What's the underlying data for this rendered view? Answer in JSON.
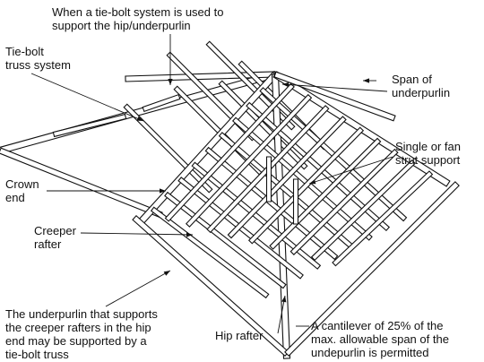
{
  "diagram": {
    "labels": {
      "top_note": [
        "When a tie-bolt system is used to",
        "support the hip/underpurlin"
      ],
      "tie_bolt_truss": [
        "Tie-bolt",
        "truss system"
      ],
      "span_of_underpurlin": [
        "Span of",
        "underpurlin"
      ],
      "single_or_fan_strut": [
        "Single or fan",
        "strut support"
      ],
      "crown_end": [
        "Crown",
        "end"
      ],
      "creeper_rafter": [
        "Creeper",
        "rafter"
      ],
      "underpurlin_note": [
        "The underpurlin that supports",
        "the creeper rafters in the hip",
        "end may be supported by a",
        "tie-bolt truss"
      ],
      "hip_rafter": [
        "Hip rafter"
      ],
      "cantilever_note": [
        "A cantilever of 25% of the",
        "max. allowable span of the",
        "undepurlin is permitted"
      ]
    },
    "colors": {
      "ink": "#111111",
      "paper": "#ffffff"
    }
  }
}
